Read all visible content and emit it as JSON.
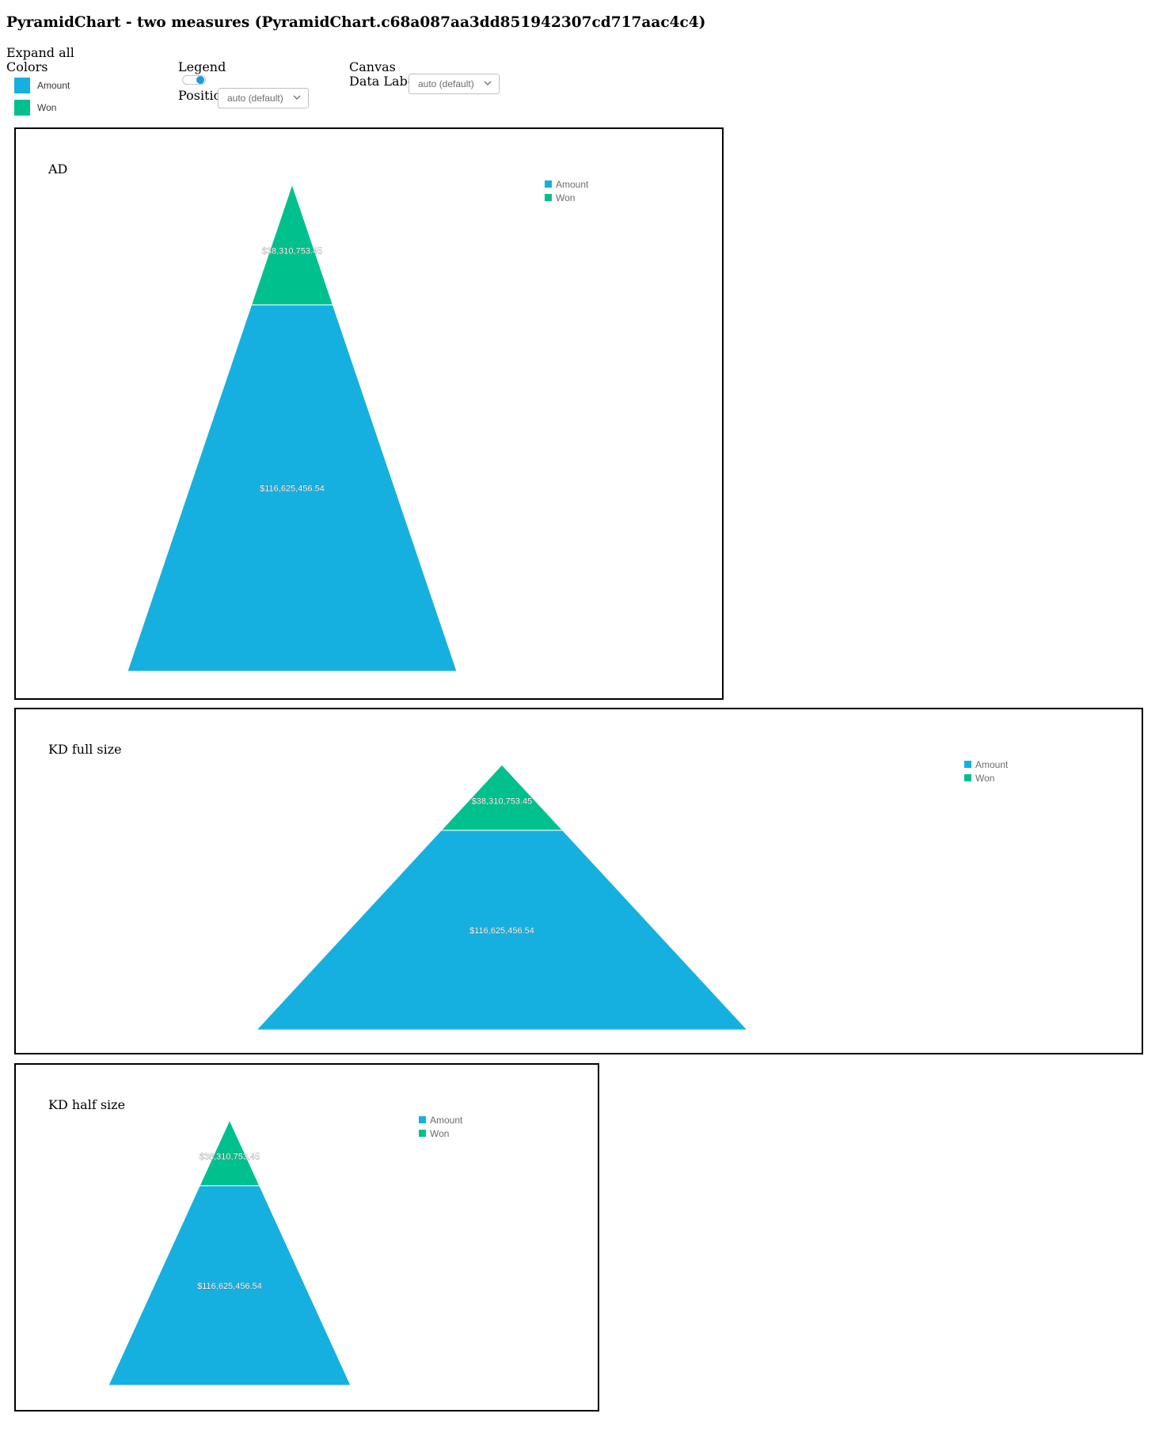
{
  "page_title": "PyramidChart - two measures (PyramidChart.c68a087aa3dd851942307cd717aac4c4)",
  "controls": {
    "expand_all": "Expand all",
    "colors_label": "Colors",
    "colors": [
      {
        "name": "Amount",
        "color": "#16b0e0"
      },
      {
        "name": "Won",
        "color": "#00c18e"
      }
    ],
    "legend_label": "Legend",
    "legend_toggle_on": true,
    "position_label": "Position",
    "position_value": "auto (default)",
    "canvas_label": "Canvas",
    "data_labels_label": "Data Labels",
    "data_labels_value": "auto (default)"
  },
  "chart_data": [
    {
      "type": "pyramid",
      "title": "AD",
      "categories": [
        "Won",
        "Amount"
      ],
      "values": [
        38310753.45,
        116625456.54
      ],
      "data_labels": [
        "$38,310,753.45",
        "$116,625,456.54"
      ],
      "colors": [
        "#00c18e",
        "#16b0e0"
      ],
      "legend": [
        "Amount",
        "Won"
      ],
      "legend_placement": "top-right"
    },
    {
      "type": "pyramid",
      "title": "KD full size",
      "categories": [
        "Won",
        "Amount"
      ],
      "values": [
        38310753.45,
        116625456.54
      ],
      "data_labels": [
        "$38,310,753.45",
        "$116,625,456.54"
      ],
      "colors": [
        "#00c18e",
        "#16b0e0"
      ],
      "legend": [
        "Amount",
        "Won"
      ],
      "legend_placement": "top-right"
    },
    {
      "type": "pyramid",
      "title": "KD half size",
      "categories": [
        "Won",
        "Amount"
      ],
      "values": [
        38310753.45,
        116625456.54
      ],
      "data_labels": [
        "$38,310,753.45",
        "$116,625,456.54"
      ],
      "colors": [
        "#00c18e",
        "#16b0e0"
      ],
      "legend": [
        "Amount",
        "Won"
      ],
      "legend_placement": "top-right"
    }
  ]
}
